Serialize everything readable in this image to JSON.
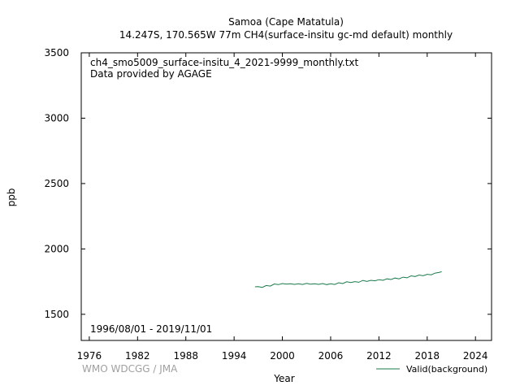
{
  "header": {
    "title_line1": "Samoa (Cape Matatula)",
    "title_line2": "14.247S, 170.565W 77m    CH4(surface-insitu gc-md default) monthly"
  },
  "annotations": {
    "filename": "ch4_smo5009_surface-insitu_4_2021-9999_monthly.txt",
    "provider": "Data provided by AGAGE",
    "date_range": "1996/08/01 - 2019/11/01",
    "credit": "WMO WDCGG / JMA"
  },
  "colors": {
    "series": "#1a7a4a",
    "axis": "#000000",
    "credit": "#a0a0a0"
  },
  "chart_data": {
    "type": "line",
    "xlabel": "Year",
    "ylabel": "ppb",
    "xlim": [
      1975,
      2026
    ],
    "ylim": [
      1300,
      3500
    ],
    "x_ticks": [
      1976,
      1982,
      1988,
      1994,
      2000,
      2006,
      2012,
      2018,
      2024
    ],
    "y_ticks": [
      1500,
      2000,
      2500,
      3000,
      3500
    ],
    "grid": false,
    "legend_position": "bottom-right",
    "series": [
      {
        "name": "Valid(background)",
        "color": "#1a7a4a",
        "x": [
          1996.6,
          1997.0,
          1997.5,
          1998.0,
          1998.5,
          1999.0,
          1999.5,
          2000.0,
          2000.5,
          2001.0,
          2001.5,
          2002.0,
          2002.5,
          2003.0,
          2003.5,
          2004.0,
          2004.5,
          2005.0,
          2005.5,
          2006.0,
          2006.5,
          2007.0,
          2007.5,
          2008.0,
          2008.5,
          2009.0,
          2009.5,
          2010.0,
          2010.5,
          2011.0,
          2011.5,
          2012.0,
          2012.5,
          2013.0,
          2013.5,
          2014.0,
          2014.5,
          2015.0,
          2015.5,
          2016.0,
          2016.5,
          2017.0,
          2017.5,
          2018.0,
          2018.5,
          2019.0,
          2019.5,
          2019.8
        ],
        "y": [
          1710,
          1712,
          1706,
          1720,
          1716,
          1732,
          1727,
          1735,
          1731,
          1734,
          1729,
          1733,
          1728,
          1736,
          1730,
          1734,
          1729,
          1735,
          1727,
          1733,
          1728,
          1741,
          1735,
          1749,
          1743,
          1750,
          1745,
          1759,
          1752,
          1760,
          1756,
          1765,
          1760,
          1771,
          1766,
          1777,
          1771,
          1784,
          1779,
          1794,
          1789,
          1800,
          1795,
          1806,
          1802,
          1815,
          1821,
          1826
        ]
      }
    ]
  }
}
